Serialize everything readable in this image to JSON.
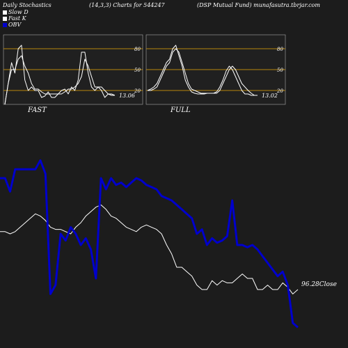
{
  "header": {
    "title": "Daily Stochastics",
    "params": "(14,3,3) Charts for 544247",
    "symbol": "(DSP Mutual Fund) munafasutra.tbrjar.com"
  },
  "legend": [
    {
      "label": "Slow  D",
      "color": "#ffffff"
    },
    {
      "label": "Fast K",
      "color": "#ffffff"
    },
    {
      "label": "OBV",
      "color": "#0000cc"
    }
  ],
  "chart_data": [
    {
      "type": "line",
      "title": "FAST",
      "ylim": [
        0,
        100
      ],
      "gridlines": [
        20,
        50,
        80
      ],
      "tick_labels": [
        "80",
        "50",
        "20"
      ],
      "last_value_label": "13.06",
      "series": [
        {
          "name": "Slow  D",
          "values": [
            0,
            30,
            50,
            50,
            65,
            70,
            55,
            45,
            30,
            22,
            22,
            18,
            15,
            15,
            15,
            15,
            15,
            15,
            18,
            22,
            22,
            25,
            30,
            40,
            65,
            55,
            40,
            25,
            25,
            25,
            20,
            15,
            13,
            13
          ]
        },
        {
          "name": "Fast K",
          "values": [
            0,
            30,
            60,
            45,
            80,
            85,
            35,
            20,
            25,
            20,
            20,
            10,
            12,
            18,
            10,
            10,
            15,
            20,
            22,
            15,
            25,
            20,
            35,
            75,
            75,
            45,
            25,
            20,
            25,
            20,
            10,
            15,
            15,
            13
          ]
        }
      ]
    },
    {
      "type": "line",
      "title": "FULL",
      "ylim": [
        0,
        100
      ],
      "gridlines": [
        20,
        50,
        80
      ],
      "tick_labels": [
        "80",
        "50",
        "20"
      ],
      "last_value_label": "13.02",
      "series": [
        {
          "name": "Slow  D",
          "values": [
            20,
            20,
            22,
            25,
            35,
            45,
            55,
            60,
            75,
            80,
            75,
            60,
            45,
            30,
            22,
            20,
            18,
            16,
            16,
            16,
            16,
            16,
            16,
            20,
            30,
            40,
            50,
            55,
            50,
            40,
            30,
            25,
            20,
            16,
            13,
            13
          ]
        },
        {
          "name": "Fast K",
          "values": [
            20,
            22,
            25,
            30,
            40,
            50,
            60,
            65,
            80,
            85,
            70,
            55,
            35,
            25,
            18,
            16,
            15,
            15,
            15,
            16,
            16,
            16,
            18,
            25,
            35,
            48,
            55,
            50,
            40,
            30,
            20,
            15,
            15,
            13,
            13,
            13
          ]
        }
      ]
    },
    {
      "type": "line",
      "series": [
        {
          "name": "OBV",
          "values": [
            70,
            70,
            64,
            74,
            74,
            74,
            74,
            74,
            78,
            72,
            18,
            22,
            45,
            42,
            48,
            45,
            40,
            43,
            38,
            25,
            70,
            65,
            70,
            67,
            68,
            66,
            68,
            70,
            69,
            67,
            66,
            65,
            62,
            61,
            60,
            58,
            56,
            54,
            52,
            45,
            47,
            40,
            43,
            41,
            42,
            44,
            60,
            40,
            40,
            39,
            40,
            38,
            35,
            32,
            29,
            26,
            28,
            22,
            5,
            3
          ]
        },
        {
          "name": "Close",
          "values": [
            46,
            46,
            45,
            46,
            48,
            50,
            52,
            54,
            53,
            51,
            48,
            47,
            47,
            46,
            45,
            48,
            50,
            53,
            55,
            57,
            58,
            56,
            53,
            52,
            50,
            48,
            47,
            46,
            48,
            49,
            48,
            47,
            45,
            40,
            36,
            30,
            30,
            28,
            26,
            22,
            20,
            20,
            24,
            22,
            24,
            23,
            23,
            25,
            27,
            25,
            25,
            20,
            20,
            22,
            20,
            20,
            23,
            21,
            18,
            20
          ]
        }
      ],
      "last_value_label": "96.28",
      "last_value_suffix": "Close"
    }
  ]
}
